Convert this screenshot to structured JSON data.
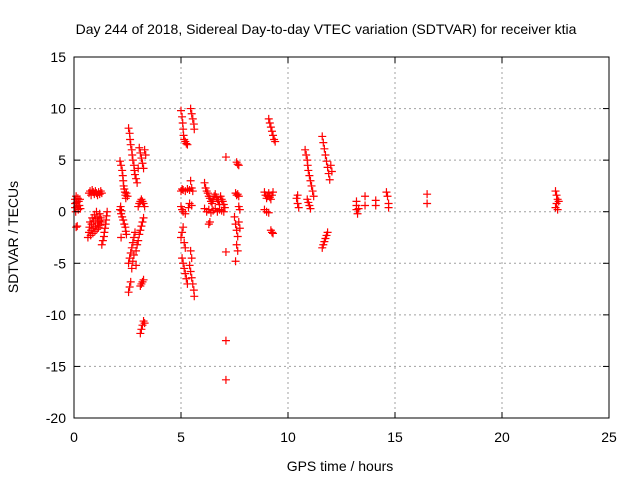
{
  "chart_data": {
    "type": "scatter",
    "title": "Day 244 of 2018, Sidereal Day-to-day VTEC variation (SDTVAR) for receiver ktia",
    "xlabel": "GPS time / hours",
    "ylabel": "SDTVAR / TECUs",
    "xlim": [
      0,
      25
    ],
    "ylim": [
      -20,
      15
    ],
    "xticks": [
      "0",
      "5",
      "10",
      "15",
      "20",
      "25"
    ],
    "yticks": [
      "15",
      "10",
      "5",
      "0",
      "-5",
      "-10",
      "-15",
      "-20"
    ],
    "grid": true,
    "marker": "+",
    "color": "#ff0000",
    "points": [
      [
        0.05,
        1.2
      ],
      [
        0.05,
        0.8
      ],
      [
        0.05,
        0.4
      ],
      [
        0.08,
        0.0
      ],
      [
        0.1,
        1.5
      ],
      [
        0.12,
        0.9
      ],
      [
        0.15,
        0.5
      ],
      [
        0.18,
        1.3
      ],
      [
        0.2,
        0.2
      ],
      [
        0.22,
        1.0
      ],
      [
        0.25,
        0.6
      ],
      [
        0.28,
        1.2
      ],
      [
        0.3,
        0.3
      ],
      [
        0.1,
        -1.5
      ],
      [
        0.15,
        -1.4
      ],
      [
        0.7,
        1.8
      ],
      [
        0.75,
        2.0
      ],
      [
        0.8,
        1.6
      ],
      [
        0.85,
        2.1
      ],
      [
        0.9,
        1.9
      ],
      [
        0.95,
        1.7
      ],
      [
        1.0,
        2.0
      ],
      [
        1.05,
        1.8
      ],
      [
        1.1,
        1.6
      ],
      [
        1.15,
        1.9
      ],
      [
        1.2,
        1.7
      ],
      [
        1.25,
        2.0
      ],
      [
        1.3,
        1.8
      ],
      [
        0.65,
        -2.5
      ],
      [
        0.7,
        -2.0
      ],
      [
        0.72,
        -1.5
      ],
      [
        0.75,
        -1.0
      ],
      [
        0.78,
        -2.3
      ],
      [
        0.8,
        -1.8
      ],
      [
        0.82,
        -1.2
      ],
      [
        0.85,
        -0.6
      ],
      [
        0.88,
        -2.1
      ],
      [
        0.9,
        -1.6
      ],
      [
        0.92,
        -0.9
      ],
      [
        0.95,
        -0.3
      ],
      [
        0.98,
        -1.9
      ],
      [
        1.0,
        -1.4
      ],
      [
        1.02,
        -0.7
      ],
      [
        1.05,
        0.0
      ],
      [
        1.08,
        -1.7
      ],
      [
        1.1,
        -1.1
      ],
      [
        1.12,
        -0.5
      ],
      [
        1.15,
        -1.5
      ],
      [
        1.18,
        -0.9
      ],
      [
        1.2,
        -0.2
      ],
      [
        1.22,
        -1.3
      ],
      [
        1.25,
        -0.6
      ],
      [
        1.28,
        -1.0
      ],
      [
        1.3,
        -3.2
      ],
      [
        1.35,
        -2.8
      ],
      [
        1.4,
        -2.4
      ],
      [
        1.42,
        -2.0
      ],
      [
        1.45,
        -1.6
      ],
      [
        1.48,
        -1.2
      ],
      [
        1.5,
        -0.8
      ],
      [
        1.52,
        -0.4
      ],
      [
        1.55,
        0.0
      ],
      [
        2.15,
        4.9
      ],
      [
        2.2,
        4.5
      ],
      [
        2.25,
        4.0
      ],
      [
        2.28,
        3.5
      ],
      [
        2.3,
        3.0
      ],
      [
        2.32,
        2.5
      ],
      [
        2.35,
        2.2
      ],
      [
        2.38,
        1.9
      ],
      [
        2.4,
        1.6
      ],
      [
        2.42,
        1.3
      ],
      [
        2.45,
        1.8
      ],
      [
        2.5,
        1.5
      ],
      [
        2.15,
        0.2
      ],
      [
        2.18,
        0.5
      ],
      [
        2.2,
        -0.2
      ],
      [
        2.22,
        0.1
      ],
      [
        2.25,
        -0.5
      ],
      [
        2.3,
        -0.8
      ],
      [
        2.35,
        -1.2
      ],
      [
        2.4,
        -1.5
      ],
      [
        2.42,
        -1.9
      ],
      [
        2.45,
        -2.2
      ],
      [
        2.2,
        -2.5
      ],
      [
        2.55,
        8.1
      ],
      [
        2.6,
        7.6
      ],
      [
        2.62,
        7.0
      ],
      [
        2.65,
        6.5
      ],
      [
        2.7,
        6.0
      ],
      [
        2.72,
        5.5
      ],
      [
        2.75,
        5.0
      ],
      [
        2.8,
        4.5
      ],
      [
        2.82,
        4.0
      ],
      [
        2.85,
        3.6
      ],
      [
        2.9,
        3.2
      ],
      [
        2.95,
        2.8
      ],
      [
        3.0,
        4.2
      ],
      [
        2.55,
        -7.8
      ],
      [
        2.6,
        -7.3
      ],
      [
        2.65,
        -6.8
      ],
      [
        2.55,
        -5.0
      ],
      [
        2.6,
        -4.5
      ],
      [
        2.65,
        -4.0
      ],
      [
        2.7,
        -3.5
      ],
      [
        2.75,
        -3.0
      ],
      [
        2.8,
        -2.5
      ],
      [
        2.85,
        -2.0
      ],
      [
        2.9,
        -3.8
      ],
      [
        2.95,
        -3.2
      ],
      [
        3.0,
        -2.8
      ],
      [
        3.05,
        -2.2
      ],
      [
        3.1,
        -1.8
      ],
      [
        3.15,
        -1.4
      ],
      [
        3.2,
        -1.0
      ],
      [
        3.25,
        -0.6
      ],
      [
        2.7,
        -5.5
      ],
      [
        2.75,
        -4.8
      ],
      [
        2.8,
        -4.2
      ],
      [
        2.9,
        -5.2
      ],
      [
        3.0,
        0.5
      ],
      [
        3.05,
        0.8
      ],
      [
        3.1,
        1.0
      ],
      [
        3.15,
        1.2
      ],
      [
        3.2,
        1.0
      ],
      [
        3.25,
        0.8
      ],
      [
        3.3,
        0.5
      ],
      [
        3.05,
        6.2
      ],
      [
        3.1,
        5.7
      ],
      [
        3.15,
        5.2
      ],
      [
        3.2,
        4.7
      ],
      [
        3.25,
        4.2
      ],
      [
        3.3,
        6.0
      ],
      [
        3.35,
        5.5
      ],
      [
        3.1,
        -7.2
      ],
      [
        3.15,
        -7.0
      ],
      [
        3.2,
        -6.8
      ],
      [
        3.25,
        -6.6
      ],
      [
        3.1,
        -11.8
      ],
      [
        3.15,
        -11.4
      ],
      [
        3.2,
        -11.0
      ],
      [
        3.25,
        -10.6
      ],
      [
        3.3,
        -10.8
      ],
      [
        5.0,
        9.8
      ],
      [
        5.05,
        9.2
      ],
      [
        5.08,
        8.6
      ],
      [
        5.1,
        8.0
      ],
      [
        5.12,
        7.4
      ],
      [
        5.15,
        7.0
      ],
      [
        5.2,
        6.8
      ],
      [
        5.25,
        6.6
      ],
      [
        5.3,
        6.5
      ],
      [
        5.45,
        10.0
      ],
      [
        5.5,
        9.5
      ],
      [
        5.55,
        9.0
      ],
      [
        5.6,
        8.5
      ],
      [
        5.62,
        8.0
      ],
      [
        5.0,
        2.0
      ],
      [
        5.05,
        2.2
      ],
      [
        5.1,
        2.1
      ],
      [
        5.2,
        2.0
      ],
      [
        5.3,
        2.2
      ],
      [
        5.4,
        2.1
      ],
      [
        5.5,
        2.3
      ],
      [
        5.55,
        2.0
      ],
      [
        5.0,
        0.5
      ],
      [
        5.05,
        0.2
      ],
      [
        5.1,
        0.0
      ],
      [
        5.2,
        -0.2
      ],
      [
        5.35,
        0.4
      ],
      [
        5.4,
        0.8
      ],
      [
        5.45,
        3.0
      ],
      [
        5.5,
        0.6
      ],
      [
        5.0,
        -2.5
      ],
      [
        5.05,
        -2.0
      ],
      [
        5.1,
        -1.5
      ],
      [
        5.15,
        -3.0
      ],
      [
        5.2,
        -3.5
      ],
      [
        5.05,
        -4.5
      ],
      [
        5.1,
        -5.0
      ],
      [
        5.15,
        -5.5
      ],
      [
        5.2,
        -6.0
      ],
      [
        5.25,
        -6.5
      ],
      [
        5.3,
        -7.0
      ],
      [
        5.4,
        -5.2
      ],
      [
        5.45,
        -5.8
      ],
      [
        5.5,
        -6.4
      ],
      [
        5.55,
        -7.0
      ],
      [
        5.6,
        -7.6
      ],
      [
        5.62,
        -8.2
      ],
      [
        5.45,
        -3.8
      ],
      [
        5.5,
        -4.5
      ],
      [
        6.1,
        2.8
      ],
      [
        6.15,
        2.3
      ],
      [
        6.2,
        2.0
      ],
      [
        6.25,
        1.8
      ],
      [
        6.3,
        1.5
      ],
      [
        6.35,
        1.3
      ],
      [
        6.4,
        1.0
      ],
      [
        6.45,
        0.8
      ],
      [
        6.5,
        1.2
      ],
      [
        6.55,
        1.5
      ],
      [
        6.6,
        1.7
      ],
      [
        6.65,
        1.4
      ],
      [
        6.7,
        1.2
      ],
      [
        6.75,
        1.0
      ],
      [
        6.8,
        0.7
      ],
      [
        6.85,
        1.5
      ],
      [
        6.9,
        1.2
      ],
      [
        6.95,
        1.0
      ],
      [
        7.0,
        0.7
      ],
      [
        7.05,
        0.4
      ],
      [
        6.1,
        0.3
      ],
      [
        6.2,
        0.0
      ],
      [
        6.3,
        0.2
      ],
      [
        6.4,
        -0.1
      ],
      [
        6.5,
        0.1
      ],
      [
        6.6,
        0.3
      ],
      [
        6.7,
        0.0
      ],
      [
        6.8,
        0.2
      ],
      [
        6.9,
        0.1
      ],
      [
        7.0,
        0.0
      ],
      [
        6.3,
        -1.2
      ],
      [
        6.35,
        -1.0
      ],
      [
        7.1,
        5.3
      ],
      [
        7.1,
        -3.9
      ],
      [
        7.1,
        -12.5
      ],
      [
        7.1,
        -16.3
      ],
      [
        7.55,
        1.8
      ],
      [
        7.6,
        1.6
      ],
      [
        7.65,
        1.7
      ],
      [
        7.7,
        1.5
      ],
      [
        7.6,
        4.8
      ],
      [
        7.65,
        4.6
      ],
      [
        7.7,
        4.5
      ],
      [
        7.5,
        -0.5
      ],
      [
        7.55,
        -1.2
      ],
      [
        7.6,
        -1.8
      ],
      [
        7.65,
        -2.4
      ],
      [
        7.7,
        -1.0
      ],
      [
        7.75,
        -1.6
      ],
      [
        7.6,
        -3.2
      ],
      [
        7.65,
        -3.8
      ],
      [
        7.55,
        -4.8
      ],
      [
        7.7,
        0.5
      ],
      [
        7.75,
        0.2
      ],
      [
        8.9,
        1.9
      ],
      [
        8.95,
        1.6
      ],
      [
        9.0,
        1.3
      ],
      [
        9.05,
        1.5
      ],
      [
        9.1,
        1.8
      ],
      [
        9.15,
        1.4
      ],
      [
        9.2,
        1.2
      ],
      [
        9.25,
        1.6
      ],
      [
        9.3,
        1.9
      ],
      [
        9.1,
        9.0
      ],
      [
        9.15,
        8.6
      ],
      [
        9.2,
        8.2
      ],
      [
        9.25,
        7.8
      ],
      [
        9.3,
        7.4
      ],
      [
        9.35,
        7.0
      ],
      [
        9.4,
        6.8
      ],
      [
        8.9,
        0.2
      ],
      [
        9.0,
        0.0
      ],
      [
        9.1,
        -0.1
      ],
      [
        9.2,
        -1.8
      ],
      [
        9.25,
        -2.0
      ],
      [
        9.3,
        -2.1
      ],
      [
        10.4,
        1.3
      ],
      [
        10.45,
        0.8
      ],
      [
        10.5,
        0.4
      ],
      [
        10.45,
        1.6
      ],
      [
        10.8,
        6.0
      ],
      [
        10.85,
        5.5
      ],
      [
        10.9,
        5.0
      ],
      [
        10.92,
        4.5
      ],
      [
        10.95,
        4.0
      ],
      [
        11.0,
        3.5
      ],
      [
        11.05,
        3.0
      ],
      [
        11.1,
        2.5
      ],
      [
        11.15,
        2.0
      ],
      [
        11.2,
        1.5
      ],
      [
        10.9,
        1.2
      ],
      [
        10.95,
        0.9
      ],
      [
        11.0,
        0.6
      ],
      [
        11.05,
        0.3
      ],
      [
        11.6,
        7.3
      ],
      [
        11.65,
        6.7
      ],
      [
        11.7,
        6.1
      ],
      [
        11.75,
        5.5
      ],
      [
        11.8,
        4.9
      ],
      [
        11.85,
        4.3
      ],
      [
        11.9,
        3.7
      ],
      [
        11.95,
        3.1
      ],
      [
        12.0,
        4.5
      ],
      [
        12.05,
        3.9
      ],
      [
        11.6,
        -3.5
      ],
      [
        11.65,
        -3.2
      ],
      [
        11.7,
        -2.9
      ],
      [
        11.75,
        -2.6
      ],
      [
        11.8,
        -2.3
      ],
      [
        11.85,
        -2.0
      ],
      [
        13.2,
        1.0
      ],
      [
        13.2,
        0.6
      ],
      [
        13.2,
        0.2
      ],
      [
        13.25,
        -0.2
      ],
      [
        13.3,
        0.3
      ],
      [
        13.6,
        1.5
      ],
      [
        13.6,
        0.6
      ],
      [
        14.1,
        1.1
      ],
      [
        14.1,
        0.6
      ],
      [
        14.6,
        1.9
      ],
      [
        14.65,
        1.5
      ],
      [
        14.7,
        0.8
      ],
      [
        14.7,
        0.4
      ],
      [
        16.5,
        1.7
      ],
      [
        16.5,
        0.8
      ],
      [
        22.5,
        2.0
      ],
      [
        22.55,
        1.6
      ],
      [
        22.6,
        1.2
      ],
      [
        22.55,
        0.8
      ],
      [
        22.5,
        0.4
      ],
      [
        22.6,
        0.2
      ],
      [
        22.65,
        1.0
      ]
    ]
  }
}
